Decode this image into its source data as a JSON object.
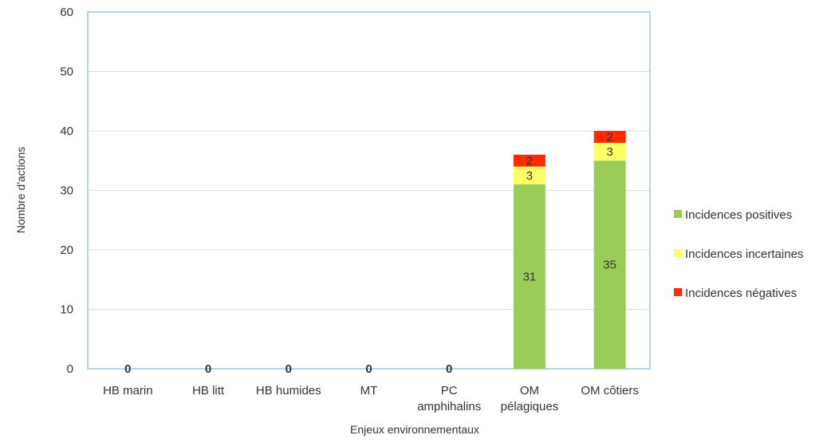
{
  "chart_data": {
    "type": "bar",
    "stacked": true,
    "title": "",
    "xlabel": "Enjeux environnementaux",
    "ylabel": "Nombre  d'actions",
    "ylim": [
      0,
      60
    ],
    "yticks": [
      0,
      10,
      20,
      30,
      40,
      50,
      60
    ],
    "grid": true,
    "legend_position": "right",
    "categories": [
      [
        "HB marin"
      ],
      [
        "HB litt"
      ],
      [
        "HB humides"
      ],
      [
        "MT"
      ],
      [
        "PC",
        "amphihalins"
      ],
      [
        "OM",
        "pélagiques"
      ],
      [
        "OM côtiers"
      ]
    ],
    "series": [
      {
        "name": "Incidences positives",
        "color": "#9ACD58",
        "values": [
          0,
          0,
          0,
          0,
          0,
          31,
          35
        ]
      },
      {
        "name": "Incidences incertaines",
        "color": "#FFFF66",
        "values": [
          0,
          0,
          0,
          0,
          0,
          3,
          3
        ]
      },
      {
        "name": "Incidences négatives",
        "color": "#FF2A00",
        "values": [
          0,
          0,
          0,
          0,
          0,
          2,
          2
        ]
      }
    ],
    "zero_labels": [
      "0",
      "0",
      "0",
      "0",
      "0"
    ]
  }
}
